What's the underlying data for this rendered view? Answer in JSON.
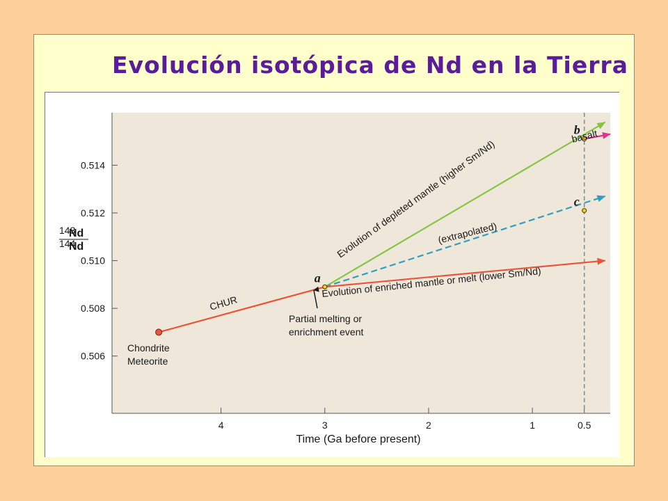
{
  "slide": {
    "title": "Evolución isotópica de Nd en la Tierra"
  },
  "chart_data": {
    "type": "line",
    "xlabel": "Time (Ga before present)",
    "ylabel": {
      "numerator": "Nd",
      "numerator_mass": "143",
      "denominator": "Nd",
      "denominator_mass": "144"
    },
    "x_reversed": true,
    "xlim": [
      5.05,
      0.25
    ],
    "ylim": [
      0.5036,
      0.5162
    ],
    "x_ticks": [
      {
        "value": 4,
        "label": "4"
      },
      {
        "value": 3,
        "label": "3"
      },
      {
        "value": 2,
        "label": "2"
      },
      {
        "value": 1,
        "label": "1"
      },
      {
        "value": 0.5,
        "label": "0.5"
      }
    ],
    "y_ticks": [
      {
        "value": 0.506,
        "label": "0.506"
      },
      {
        "value": 0.508,
        "label": "0.508"
      },
      {
        "value": 0.51,
        "label": "0.510"
      },
      {
        "value": 0.512,
        "label": "0.512"
      },
      {
        "value": 0.514,
        "label": "0.514"
      }
    ],
    "series": [
      {
        "name": "CHUR",
        "color": "#e8553a",
        "dashed": false,
        "arrow": false,
        "points": [
          [
            4.6,
            0.507
          ],
          [
            3.0,
            0.5089
          ]
        ]
      },
      {
        "name": "Evolution of depleted mantle (higher Sm/Nd)",
        "color": "#86c443",
        "dashed": false,
        "arrow": true,
        "points": [
          [
            3.0,
            0.5089
          ],
          [
            0.3,
            0.5158
          ]
        ]
      },
      {
        "name": "(extrapolated)",
        "color": "#2f9fc0",
        "dashed": true,
        "arrow": true,
        "points": [
          [
            3.0,
            0.5089
          ],
          [
            0.3,
            0.5127
          ]
        ]
      },
      {
        "name": "Evolution of enriched mantle or melt (lower Sm/Nd)",
        "color": "#e8553a",
        "dashed": false,
        "arrow": true,
        "points": [
          [
            3.0,
            0.5089
          ],
          [
            0.3,
            0.51
          ]
        ]
      },
      {
        "name": "basalt",
        "color": "#e0338f",
        "dashed": false,
        "arrow": true,
        "points": [
          [
            0.5,
            0.5151
          ],
          [
            0.25,
            0.5153
          ]
        ]
      }
    ],
    "vertical_line": {
      "x": 0.5,
      "dashed": true,
      "color": "#888888"
    },
    "points": [
      {
        "label": "a",
        "x": 3.0,
        "y": 0.5089
      },
      {
        "label": "b",
        "x": 0.5,
        "y": 0.5151
      },
      {
        "label": "c",
        "x": 0.5,
        "y": 0.5121
      }
    ],
    "chondrite_point": {
      "x": 4.6,
      "y": 0.507,
      "color": "#e8553a"
    },
    "annotations": {
      "chur": "CHUR",
      "depleted": "Evolution of depleted mantle (higher Sm/Nd)",
      "extrapolated": "(extrapolated)",
      "enriched": "Evolution of enriched mantle or melt (lower Sm/Nd)",
      "basalt": "basalt",
      "event_line1": "Partial melting or",
      "event_line2": "enrichment event",
      "chondrite_line1": "Chondrite",
      "chondrite_line2": "Meteorite"
    }
  }
}
